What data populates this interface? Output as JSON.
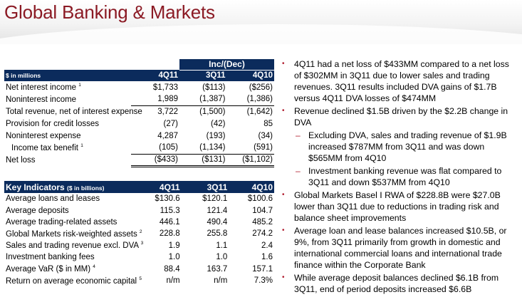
{
  "title": "Global Banking & Markets",
  "colors": {
    "title": "#8b1a24",
    "header_bg": "#0b2b5c",
    "bullet": "#b01c2e"
  },
  "financials": {
    "group_header": "Inc/(Dec)",
    "unit_label": "$ in millions",
    "columns": [
      "4Q11",
      "3Q11",
      "4Q10"
    ],
    "rows": [
      {
        "label": "Net interest income",
        "note": "1",
        "values": [
          "$1,733",
          "($113)",
          "($256)"
        ]
      },
      {
        "label": "Noninterest income",
        "note": "",
        "values": [
          "1,989",
          "(1,387)",
          "(1,386)"
        ]
      },
      {
        "label": "Total revenue, net of interest expense",
        "note": "",
        "values": [
          "3,722",
          "(1,500)",
          "(1,642)"
        ]
      },
      {
        "label": "Provision for credit losses",
        "note": "",
        "values": [
          "(27)",
          "(42)",
          "85"
        ]
      },
      {
        "label": "Noninterest expense",
        "note": "",
        "values": [
          "4,287",
          "(193)",
          "(34)"
        ]
      },
      {
        "label": "Income tax benefit",
        "note": "1",
        "values": [
          "(105)",
          "(1,134)",
          "(591)"
        ]
      },
      {
        "label": "Net loss",
        "note": "",
        "values": [
          "($433)",
          "($131)",
          "($1,102)"
        ]
      }
    ]
  },
  "kpis": {
    "header_label": "Key Indicators",
    "header_unit": "($ in billions)",
    "columns": [
      "4Q11",
      "3Q11",
      "4Q10"
    ],
    "rows": [
      {
        "label": "Average loans and leases",
        "note": "",
        "values": [
          "$130.6",
          "$120.1",
          "$100.6"
        ]
      },
      {
        "label": "Average deposits",
        "note": "",
        "values": [
          "115.3",
          "121.4",
          "104.7"
        ]
      },
      {
        "label": "Average trading-related assets",
        "note": "",
        "values": [
          "446.1",
          "490.4",
          "485.2"
        ]
      },
      {
        "label": "Global Markets risk-weighted assets",
        "note": "2",
        "values": [
          "228.8",
          "255.8",
          "274.2"
        ]
      },
      {
        "label": "Sales and trading revenue excl. DVA",
        "note": "3",
        "values": [
          "1.9",
          "1.1",
          "2.4"
        ]
      },
      {
        "label": "Investment banking fees",
        "note": "",
        "values": [
          "1.0",
          "1.0",
          "1.6"
        ]
      },
      {
        "label": "Average VaR ($ in MM)",
        "note": "4",
        "values": [
          "88.4",
          "163.7",
          "157.1"
        ]
      },
      {
        "label": "Return on average economic capital",
        "note": "5",
        "values": [
          "n/m",
          "n/m",
          "7.3%"
        ]
      }
    ]
  },
  "bullets": [
    {
      "level": 1,
      "text": "4Q11 had a net loss of $433MM compared to a net loss of $302MM in 3Q11 due to lower sales and trading revenues. 3Q11 results included DVA gains of $1.7B versus 4Q11 DVA losses of $474MM"
    },
    {
      "level": 1,
      "text": "Revenue declined $1.5B driven by the $2.2B change in DVA"
    },
    {
      "level": 2,
      "text": "Excluding DVA, sales and trading revenue of $1.9B increased $787MM from 3Q11 and was down $565MM from 4Q10"
    },
    {
      "level": 2,
      "text": "Investment banking revenue was flat compared to 3Q11 and down $537MM from 4Q10"
    },
    {
      "level": 1,
      "text": "Global Markets Basel I RWA of $228.8B were $27.0B lower than 3Q11 due to reductions in trading risk and balance sheet improvements"
    },
    {
      "level": 1,
      "text": "Average loan and lease balances increased $10.5B, or 9%, from 3Q11 primarily from growth in domestic and international commercial loans and international trade finance within the Corporate Bank"
    },
    {
      "level": 1,
      "text": "While average deposit balances declined $6.1B from 3Q11, end of period deposits increased $6.6B"
    }
  ]
}
